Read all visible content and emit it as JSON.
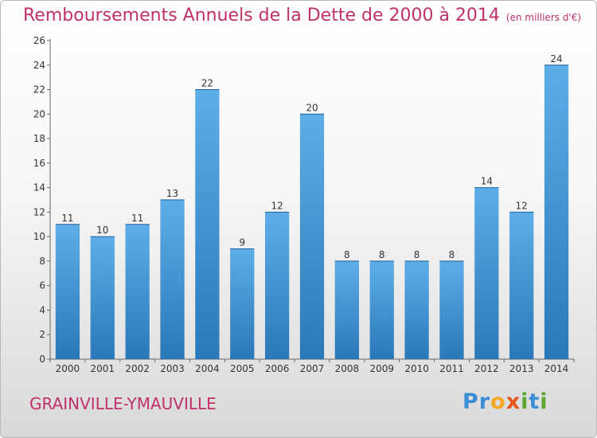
{
  "header": {
    "title": "Remboursements Annuels de la Dette de 2000 à 2014",
    "unit": "(en milliers d'€)"
  },
  "footer": {
    "town": "GRAINVILLE-YMAUVILLE",
    "brand": {
      "letters": [
        {
          "ch": "P",
          "color": "#3a8dd6"
        },
        {
          "ch": "r",
          "color": "#3a8dd6"
        },
        {
          "ch": "o",
          "color": "#f5a623"
        },
        {
          "ch": "x",
          "color": "#e8541c"
        },
        {
          "ch": "i",
          "color": "#5aa832"
        },
        {
          "ch": "t",
          "color": "#3a8dd6"
        },
        {
          "ch": "i",
          "color": "#5aa832"
        }
      ]
    }
  },
  "chart_data": {
    "type": "bar",
    "title": "Remboursements Annuels de la Dette de 2000 à 2014",
    "xlabel": "",
    "ylabel": "",
    "categories": [
      "2000",
      "2001",
      "2002",
      "2003",
      "2004",
      "2005",
      "2006",
      "2007",
      "2008",
      "2009",
      "2010",
      "2011",
      "2012",
      "2013",
      "2014"
    ],
    "values": [
      11,
      10,
      11,
      13,
      22,
      9,
      12,
      20,
      8,
      8,
      8,
      8,
      14,
      12,
      24
    ],
    "ylim": [
      0,
      26
    ],
    "yticks": [
      0,
      2,
      4,
      6,
      8,
      10,
      12,
      14,
      16,
      18,
      20,
      22,
      24,
      26
    ],
    "grid": false,
    "bar_color_top": "#5daee8",
    "bar_color_bottom": "#2a78b8"
  }
}
